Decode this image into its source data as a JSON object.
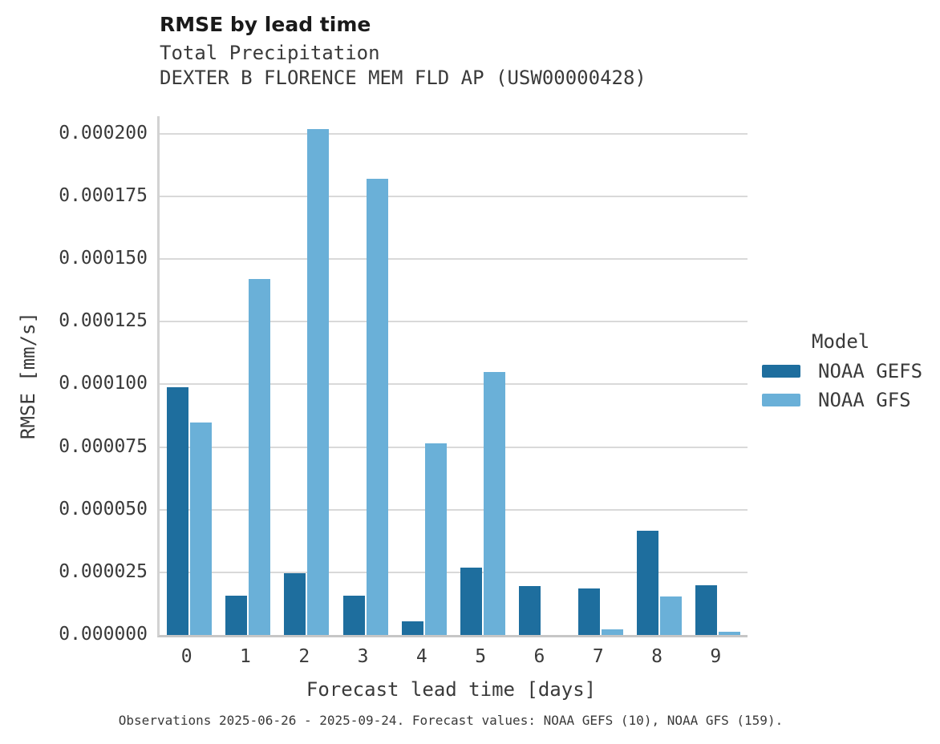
{
  "header": {
    "title": "RMSE by lead time",
    "subtitle1": "Total Precipitation",
    "subtitle2": "DEXTER B FLORENCE MEM FLD AP (USW00000428)"
  },
  "legend": {
    "title": "Model"
  },
  "footer": {
    "caption": "Observations 2025-06-26 - 2025-09-24. Forecast values: NOAA GEFS (10), NOAA GFS (159)."
  },
  "chart_data": {
    "type": "bar",
    "title": "RMSE by lead time",
    "subtitle": "Total Precipitation — DEXTER B FLORENCE MEM FLD AP (USW00000428)",
    "categories": [
      "0",
      "1",
      "2",
      "3",
      "4",
      "5",
      "6",
      "7",
      "8",
      "9"
    ],
    "series": [
      {
        "name": "NOAA GEFS",
        "color": "#1e6e9e",
        "values": [
          9.88e-05,
          1.57e-05,
          2.45e-05,
          1.58e-05,
          5.5e-06,
          2.7e-05,
          1.95e-05,
          1.85e-05,
          4.15e-05,
          1.97e-05
        ]
      },
      {
        "name": "NOAA GFS",
        "color": "#6ab0d8",
        "values": [
          8.48e-05,
          0.000142,
          0.000202,
          0.000182,
          7.65e-05,
          0.000105,
          0,
          2.2e-06,
          1.55e-05,
          1.2e-06
        ]
      }
    ],
    "xlabel": "Forecast lead time [days]",
    "ylabel": "RMSE [mm/s]",
    "ylim": [
      0,
      0.000207
    ],
    "ytick_values": [
      0,
      2.5e-05,
      5e-05,
      7.5e-05,
      0.0001,
      0.000125,
      0.00015,
      0.000175,
      0.0002
    ],
    "ytick_labels": [
      "0.000000",
      "0.000025",
      "0.000050",
      "0.000075",
      "0.000100",
      "0.000125",
      "0.000150",
      "0.000175",
      "0.000200"
    ],
    "grid": "horizontal",
    "legend_title": "Model",
    "legend_position": "right"
  }
}
